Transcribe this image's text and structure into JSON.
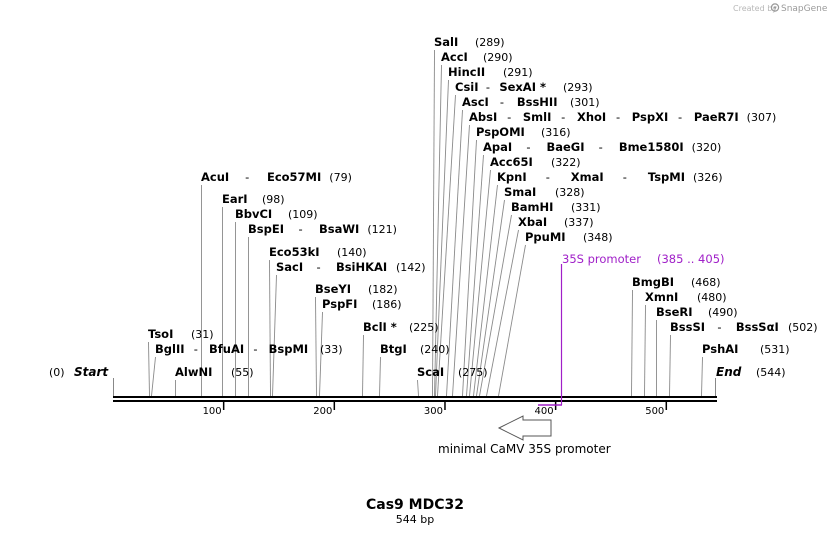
{
  "credit": {
    "prefix": "Created by",
    "brand": "SnapGene"
  },
  "sequence": {
    "name": "Cas9 MDC32",
    "length_label": "544 bp",
    "length": 544
  },
  "ends": {
    "start": {
      "pos": "(0)",
      "label": "Start"
    },
    "end": {
      "label": "End",
      "pos": "(544)"
    }
  },
  "ruler_ticks": [
    "100",
    "200",
    "300",
    "400",
    "500"
  ],
  "feature": {
    "label": "35S promoter",
    "range": "(385 .. 405)",
    "color": "#a020c8"
  },
  "annotation": {
    "label": "minimal CaMV 35S promoter"
  },
  "sites": [
    {
      "label": "TsoI",
      "pos": "(31)"
    },
    {
      "label": "BglII",
      "pos": ""
    },
    {
      "label": "BfuAI",
      "pos": ""
    },
    {
      "label": "BspMI",
      "pos": "(33)"
    },
    {
      "label": "AlwNI",
      "pos": "(55)"
    },
    {
      "label": "AcuI",
      "pos": ""
    },
    {
      "label": "Eco57MI",
      "pos": "(79)"
    },
    {
      "label": "EarI",
      "pos": "(98)"
    },
    {
      "label": "BbvCI",
      "pos": "(109)"
    },
    {
      "label": "BspEI",
      "pos": ""
    },
    {
      "label": "BsaWI",
      "pos": "(121)"
    },
    {
      "label": "Eco53kI",
      "pos": "(140)"
    },
    {
      "label": "SacI",
      "pos": ""
    },
    {
      "label": "BsiHKAI",
      "pos": "(142)"
    },
    {
      "label": "BseYI",
      "pos": "(182)"
    },
    {
      "label": "PspFI",
      "pos": "(186)"
    },
    {
      "label": "BclI *",
      "pos": "(225)"
    },
    {
      "label": "BtgI",
      "pos": "(240)"
    },
    {
      "label": "ScaI",
      "pos": "(275)"
    },
    {
      "label": "SalI",
      "pos": "(289)"
    },
    {
      "label": "AccI",
      "pos": "(290)"
    },
    {
      "label": "HincII",
      "pos": "(291)"
    },
    {
      "label": "CsiI",
      "pos": ""
    },
    {
      "label": "SexAI *",
      "pos": "(293)"
    },
    {
      "label": "AscI",
      "pos": ""
    },
    {
      "label": "BssHII",
      "pos": "(301)"
    },
    {
      "label": "AbsI",
      "pos": ""
    },
    {
      "label": "SmlI",
      "pos": ""
    },
    {
      "label": "XhoI",
      "pos": ""
    },
    {
      "label": "PspXI",
      "pos": ""
    },
    {
      "label": "PaeR7I",
      "pos": "(307)"
    },
    {
      "label": "PspOMI",
      "pos": "(316)"
    },
    {
      "label": "ApaI",
      "pos": ""
    },
    {
      "label": "BaeGI",
      "pos": ""
    },
    {
      "label": "Bme1580I",
      "pos": "(320)"
    },
    {
      "label": "Acc65I",
      "pos": "(322)"
    },
    {
      "label": "KpnI",
      "pos": ""
    },
    {
      "label": "XmaI",
      "pos": ""
    },
    {
      "label": "TspMI",
      "pos": "(326)"
    },
    {
      "label": "SmaI",
      "pos": "(328)"
    },
    {
      "label": "BamHI",
      "pos": "(331)"
    },
    {
      "label": "XbaI",
      "pos": "(337)"
    },
    {
      "label": "PpuMI",
      "pos": "(348)"
    },
    {
      "label": "BmgBI",
      "pos": "(468)"
    },
    {
      "label": "XmnI",
      "pos": "(480)"
    },
    {
      "label": "BseRI",
      "pos": "(490)"
    },
    {
      "label": "BssSI",
      "pos": ""
    },
    {
      "label": "BssSαI",
      "pos": "(502)"
    },
    {
      "label": "PshAI",
      "pos": "(531)"
    }
  ]
}
